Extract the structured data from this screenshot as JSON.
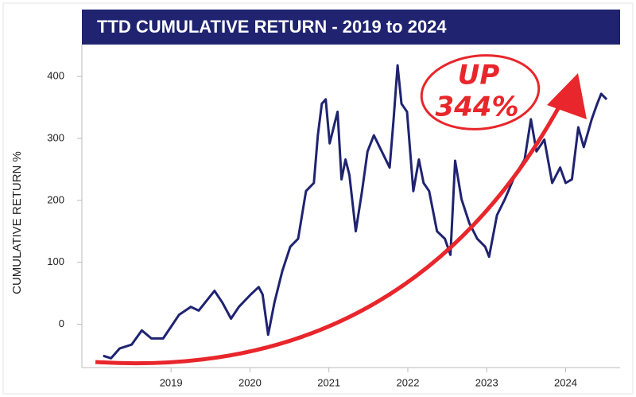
{
  "chart_data": {
    "type": "line",
    "title": "TTD CUMULATIVE RETURN - 2019 to 2024",
    "y_label": "CUMULATIVE RETURN %",
    "annotation": [
      "UP",
      "344%"
    ],
    "xlim": [
      2017.87,
      2024.69
    ],
    "xticks": [
      2019,
      2020,
      2021,
      2022,
      2023,
      2024
    ],
    "ylim": [
      -70,
      449
    ],
    "yticks": [
      0,
      100,
      200,
      300,
      400
    ],
    "series": [
      {
        "color": "#1f2370",
        "x": [
          2018.14,
          2018.24,
          2018.35,
          2018.5,
          2018.63,
          2018.75,
          2018.9,
          2019.0,
          2019.1,
          2019.25,
          2019.35,
          2019.47,
          2019.55,
          2019.65,
          2019.76,
          2019.86,
          2020.01,
          2020.11,
          2020.16,
          2020.23,
          2020.31,
          2020.41,
          2020.51,
          2020.61,
          2020.71,
          2020.81,
          2020.86,
          2020.91,
          2020.96,
          2021.01,
          2021.06,
          2021.11,
          2021.16,
          2021.21,
          2021.26,
          2021.34,
          2021.42,
          2021.49,
          2021.57,
          2021.67,
          2021.77,
          2021.82,
          2021.87,
          2021.92,
          2021.99,
          2022.07,
          2022.14,
          2022.2,
          2022.27,
          2022.37,
          2022.47,
          2022.54,
          2022.6,
          2022.68,
          2022.78,
          2022.88,
          2022.98,
          2023.03,
          2023.13,
          2023.23,
          2023.36,
          2023.48,
          2023.56,
          2023.63,
          2023.73,
          2023.83,
          2023.93,
          2024.0,
          2024.08,
          2024.16,
          2024.23,
          2024.33,
          2024.4,
          2024.45,
          2024.52
        ],
        "values": [
          -51,
          -55,
          -39,
          -33,
          -10,
          -23,
          -23,
          -4,
          15,
          28,
          22,
          41,
          54,
          35,
          9,
          28,
          48,
          60,
          48,
          -17,
          35,
          86,
          125,
          138,
          215,
          228,
          305,
          356,
          363,
          292,
          318,
          343,
          234,
          266,
          241,
          150,
          215,
          279,
          305,
          279,
          253,
          331,
          418,
          356,
          343,
          215,
          266,
          228,
          215,
          150,
          138,
          112,
          264,
          202,
          163,
          138,
          125,
          109,
          176,
          202,
          241,
          266,
          331,
          279,
          298,
          228,
          253,
          228,
          234,
          318,
          286,
          331,
          356,
          372,
          363
        ]
      }
    ]
  }
}
